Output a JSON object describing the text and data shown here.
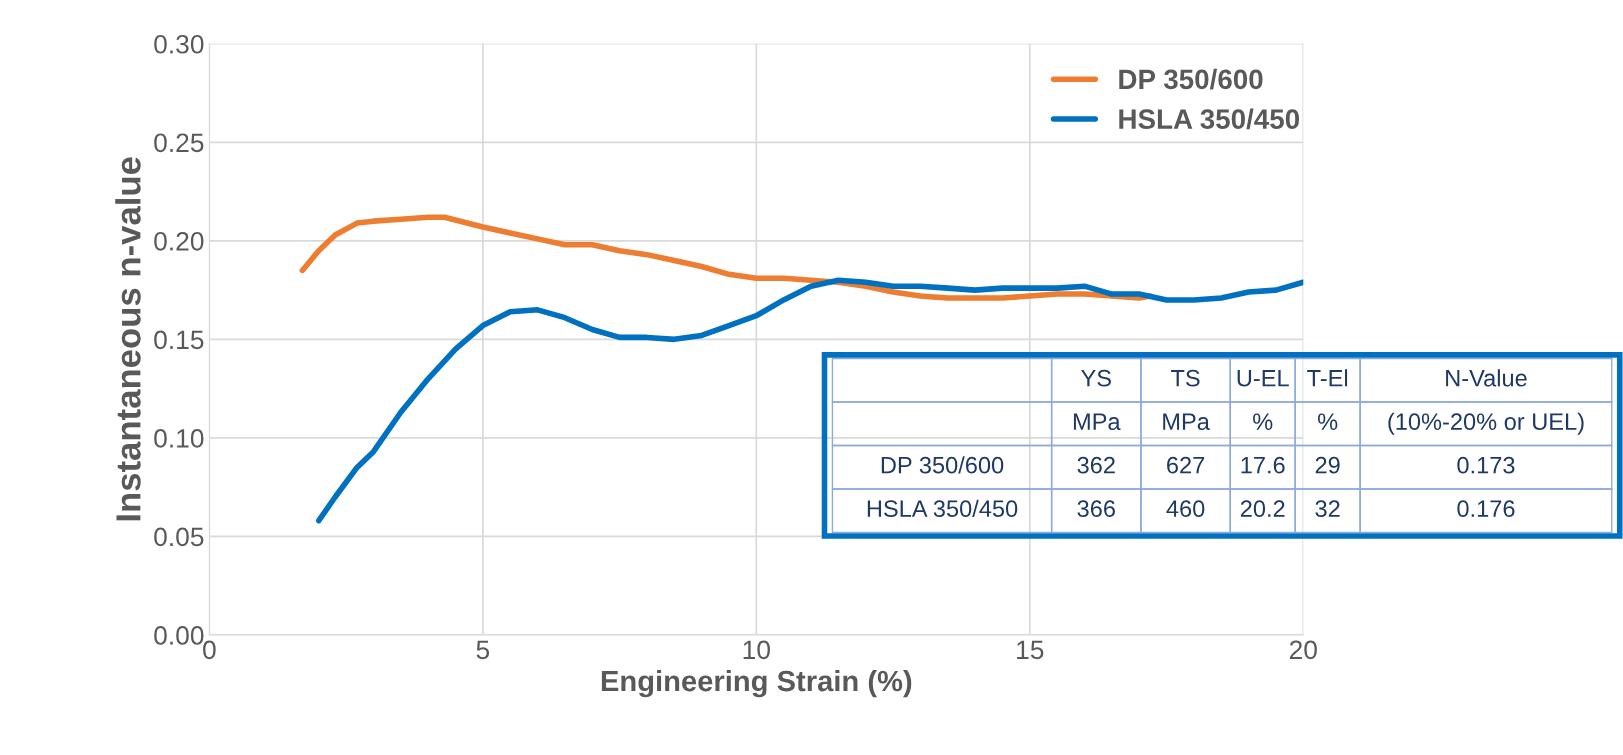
{
  "chart_data": {
    "type": "line",
    "xlabel": "Engineering Strain (%)",
    "ylabel": "Instantaneous n-value",
    "xlim": [
      0,
      20
    ],
    "xticks": [
      0,
      5,
      10,
      15,
      20
    ],
    "ylim": [
      0,
      0.3
    ],
    "yticks": [
      {
        "value": 0,
        "label": "0.00"
      },
      {
        "value": 0.05,
        "label": "0.05"
      },
      {
        "value": 0.1,
        "label": "0.10"
      },
      {
        "value": 0.15,
        "label": "0.15"
      },
      {
        "value": 0.2,
        "label": "0.20"
      },
      {
        "value": 0.25,
        "label": "0.25"
      },
      {
        "value": 0.3,
        "label": "0.30"
      }
    ],
    "grid": true,
    "legend": "top right",
    "marker": "none",
    "line_style": "solid",
    "series": [
      {
        "name": "DP 350/600",
        "color": "#ed7d31",
        "x": [
          1.7,
          2.0,
          2.3,
          2.7,
          3.0,
          3.5,
          4.0,
          4.3,
          5,
          5.5,
          6,
          6.5,
          7,
          7.5,
          8,
          8.5,
          9,
          9.5,
          10,
          10.5,
          11,
          11.5,
          12,
          12.5,
          13,
          13.5,
          14,
          14.5,
          15,
          15.5,
          16,
          16.5,
          17,
          17.2
        ],
        "values": [
          0.185,
          0.195,
          0.203,
          0.209,
          0.21,
          0.211,
          0.212,
          0.212,
          0.207,
          0.204,
          0.201,
          0.198,
          0.198,
          0.195,
          0.193,
          0.19,
          0.187,
          0.183,
          0.181,
          0.181,
          0.18,
          0.179,
          0.177,
          0.174,
          0.172,
          0.171,
          0.171,
          0.171,
          0.172,
          0.173,
          0.173,
          0.172,
          0.171,
          0.172
        ]
      },
      {
        "name": "HSLA 350/450",
        "color": "#0070c0",
        "x": [
          2.0,
          2.3,
          2.7,
          3.0,
          3.5,
          4.0,
          4.5,
          5,
          5.5,
          6,
          6.5,
          7,
          7.5,
          8,
          8.5,
          9,
          9.5,
          10,
          10.5,
          11,
          11.5,
          12,
          12.5,
          13,
          13.5,
          14,
          14.5,
          15,
          15.5,
          16,
          16.5,
          17,
          17.5,
          18,
          18.5,
          19,
          19.5,
          20
        ],
        "values": [
          0.058,
          0.07,
          0.085,
          0.093,
          0.113,
          0.13,
          0.145,
          0.157,
          0.164,
          0.165,
          0.161,
          0.155,
          0.151,
          0.151,
          0.15,
          0.152,
          0.157,
          0.162,
          0.17,
          0.177,
          0.18,
          0.179,
          0.177,
          0.177,
          0.176,
          0.175,
          0.176,
          0.176,
          0.176,
          0.177,
          0.173,
          0.173,
          0.17,
          0.17,
          0.171,
          0.174,
          0.175,
          0.179
        ]
      }
    ],
    "annotations": [
      "YS",
      "TS",
      "U-EL",
      "T-El",
      "N-Value",
      "MPa",
      "MPa",
      "%",
      "%",
      "(10%-20% or UEL)",
      "DP 350/600",
      "362",
      "627",
      "17.6",
      "29",
      "0.173",
      "HSLA 350/450",
      "366",
      "460",
      "20.2",
      "32",
      "0.176"
    ]
  }
}
